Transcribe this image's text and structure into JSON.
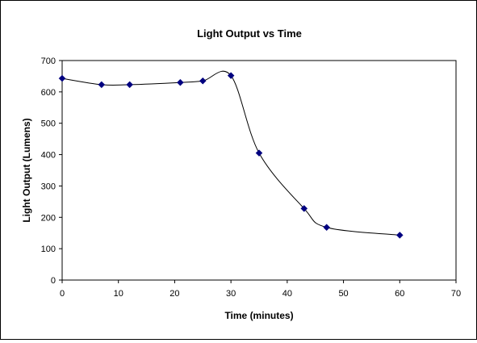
{
  "chart_data": {
    "type": "scatter",
    "title": "Light Output vs Time",
    "xlabel": "Time (minutes)",
    "ylabel": "Light Output (Lumens)",
    "xlim": [
      0,
      70
    ],
    "ylim": [
      0,
      700
    ],
    "xticks": [
      0,
      10,
      20,
      30,
      40,
      50,
      60,
      70
    ],
    "yticks": [
      0,
      100,
      200,
      300,
      400,
      500,
      600,
      700
    ],
    "x": [
      0,
      7,
      12,
      21,
      25,
      30,
      35,
      43,
      47,
      60
    ],
    "y": [
      643,
      623,
      623,
      630,
      635,
      652,
      405,
      228,
      168,
      143
    ],
    "smooth_line": true,
    "grid": false,
    "legend": "none",
    "marker": "diamond",
    "series_color": "#000080",
    "line_color": "#000000"
  }
}
